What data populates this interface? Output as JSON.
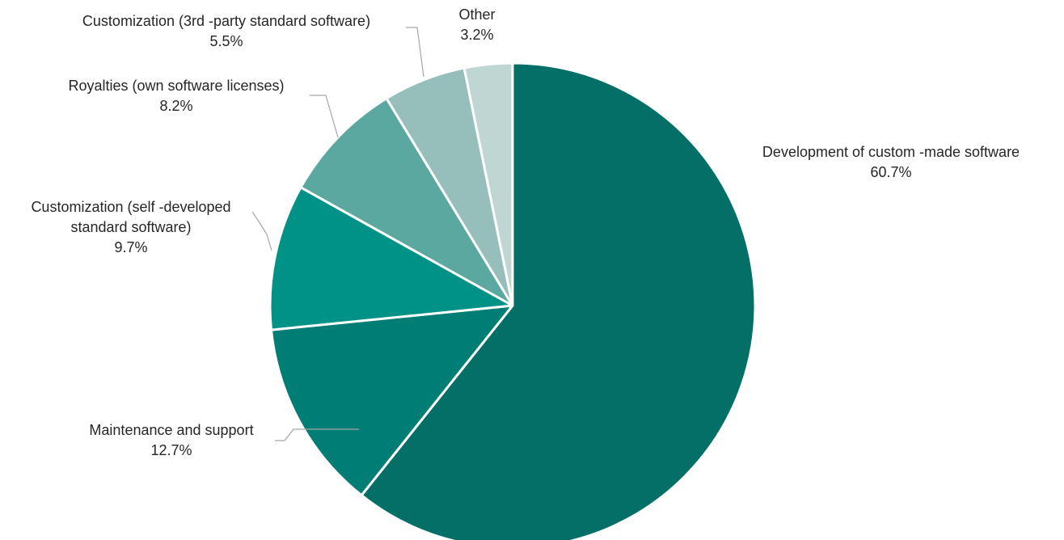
{
  "chart_data": {
    "type": "pie",
    "title": "",
    "slices": [
      {
        "label": [
          "Development of custom -made software"
        ],
        "value": 60.7,
        "value_label": "60.7%",
        "color": "#036f66"
      },
      {
        "label": [
          "Maintenance and support"
        ],
        "value": 12.7,
        "value_label": "12.7%",
        "color": "#007d75"
      },
      {
        "label": [
          "Customization (self -developed",
          "standard software)"
        ],
        "value": 9.7,
        "value_label": "9.7%",
        "color": "#009286"
      },
      {
        "label": [
          "Royalties (own software licenses)"
        ],
        "value": 8.2,
        "value_label": "8.2%",
        "color": "#5ba8a0"
      },
      {
        "label": [
          "Customization (3rd -party standard software)"
        ],
        "value": 5.5,
        "value_label": "5.5%",
        "color": "#96bfbb"
      },
      {
        "label": [
          "Other"
        ],
        "value": 3.2,
        "value_label": "3.2%",
        "color": "#bfd6d3"
      }
    ],
    "start_angle": "12 o'clock",
    "direction": "clockwise",
    "legend": "none",
    "leader_lines": true
  }
}
